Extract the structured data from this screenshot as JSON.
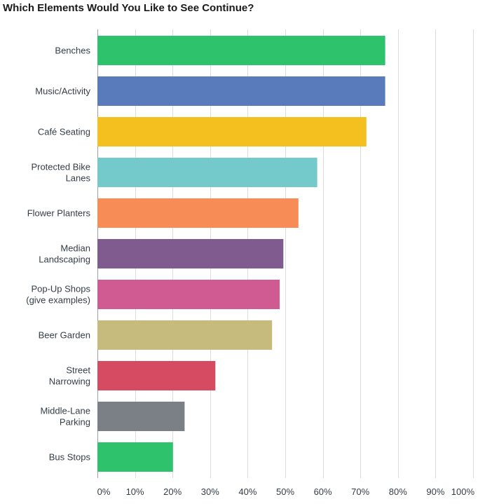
{
  "chart_data": {
    "type": "bar",
    "orientation": "horizontal",
    "title": "Which Elements Would You Like to See Continue?",
    "categories": [
      [
        "Benches"
      ],
      [
        "Music/Activity"
      ],
      [
        "Café Seating"
      ],
      [
        "Protected Bike",
        "Lanes"
      ],
      [
        "Flower Planters"
      ],
      [
        "Median",
        "Landscaping"
      ],
      [
        "Pop-Up Shops",
        "(give examples)"
      ],
      [
        "Beer Garden"
      ],
      [
        "Street",
        "Narrowing"
      ],
      [
        "Middle-Lane",
        "Parking"
      ],
      [
        "Bus Stops"
      ]
    ],
    "values": [
      76.6,
      76.6,
      71.6,
      58.5,
      53.5,
      49.5,
      48.5,
      46.5,
      31.4,
      23.2,
      20.1
    ],
    "colors": [
      "#2dc26b",
      "#5a7bbb",
      "#f3c020",
      "#74c9cb",
      "#f88c57",
      "#7f5b8f",
      "#cf5b92",
      "#c6bb7c",
      "#d64a62",
      "#7b8086",
      "#2dc26b"
    ],
    "xlim": [
      0,
      100
    ],
    "xticks": [
      "0%",
      "10%",
      "20%",
      "30%",
      "40%",
      "50%",
      "60%",
      "70%",
      "80%",
      "90%",
      "100%"
    ],
    "xlabel": "",
    "ylabel": "",
    "grid": true
  }
}
